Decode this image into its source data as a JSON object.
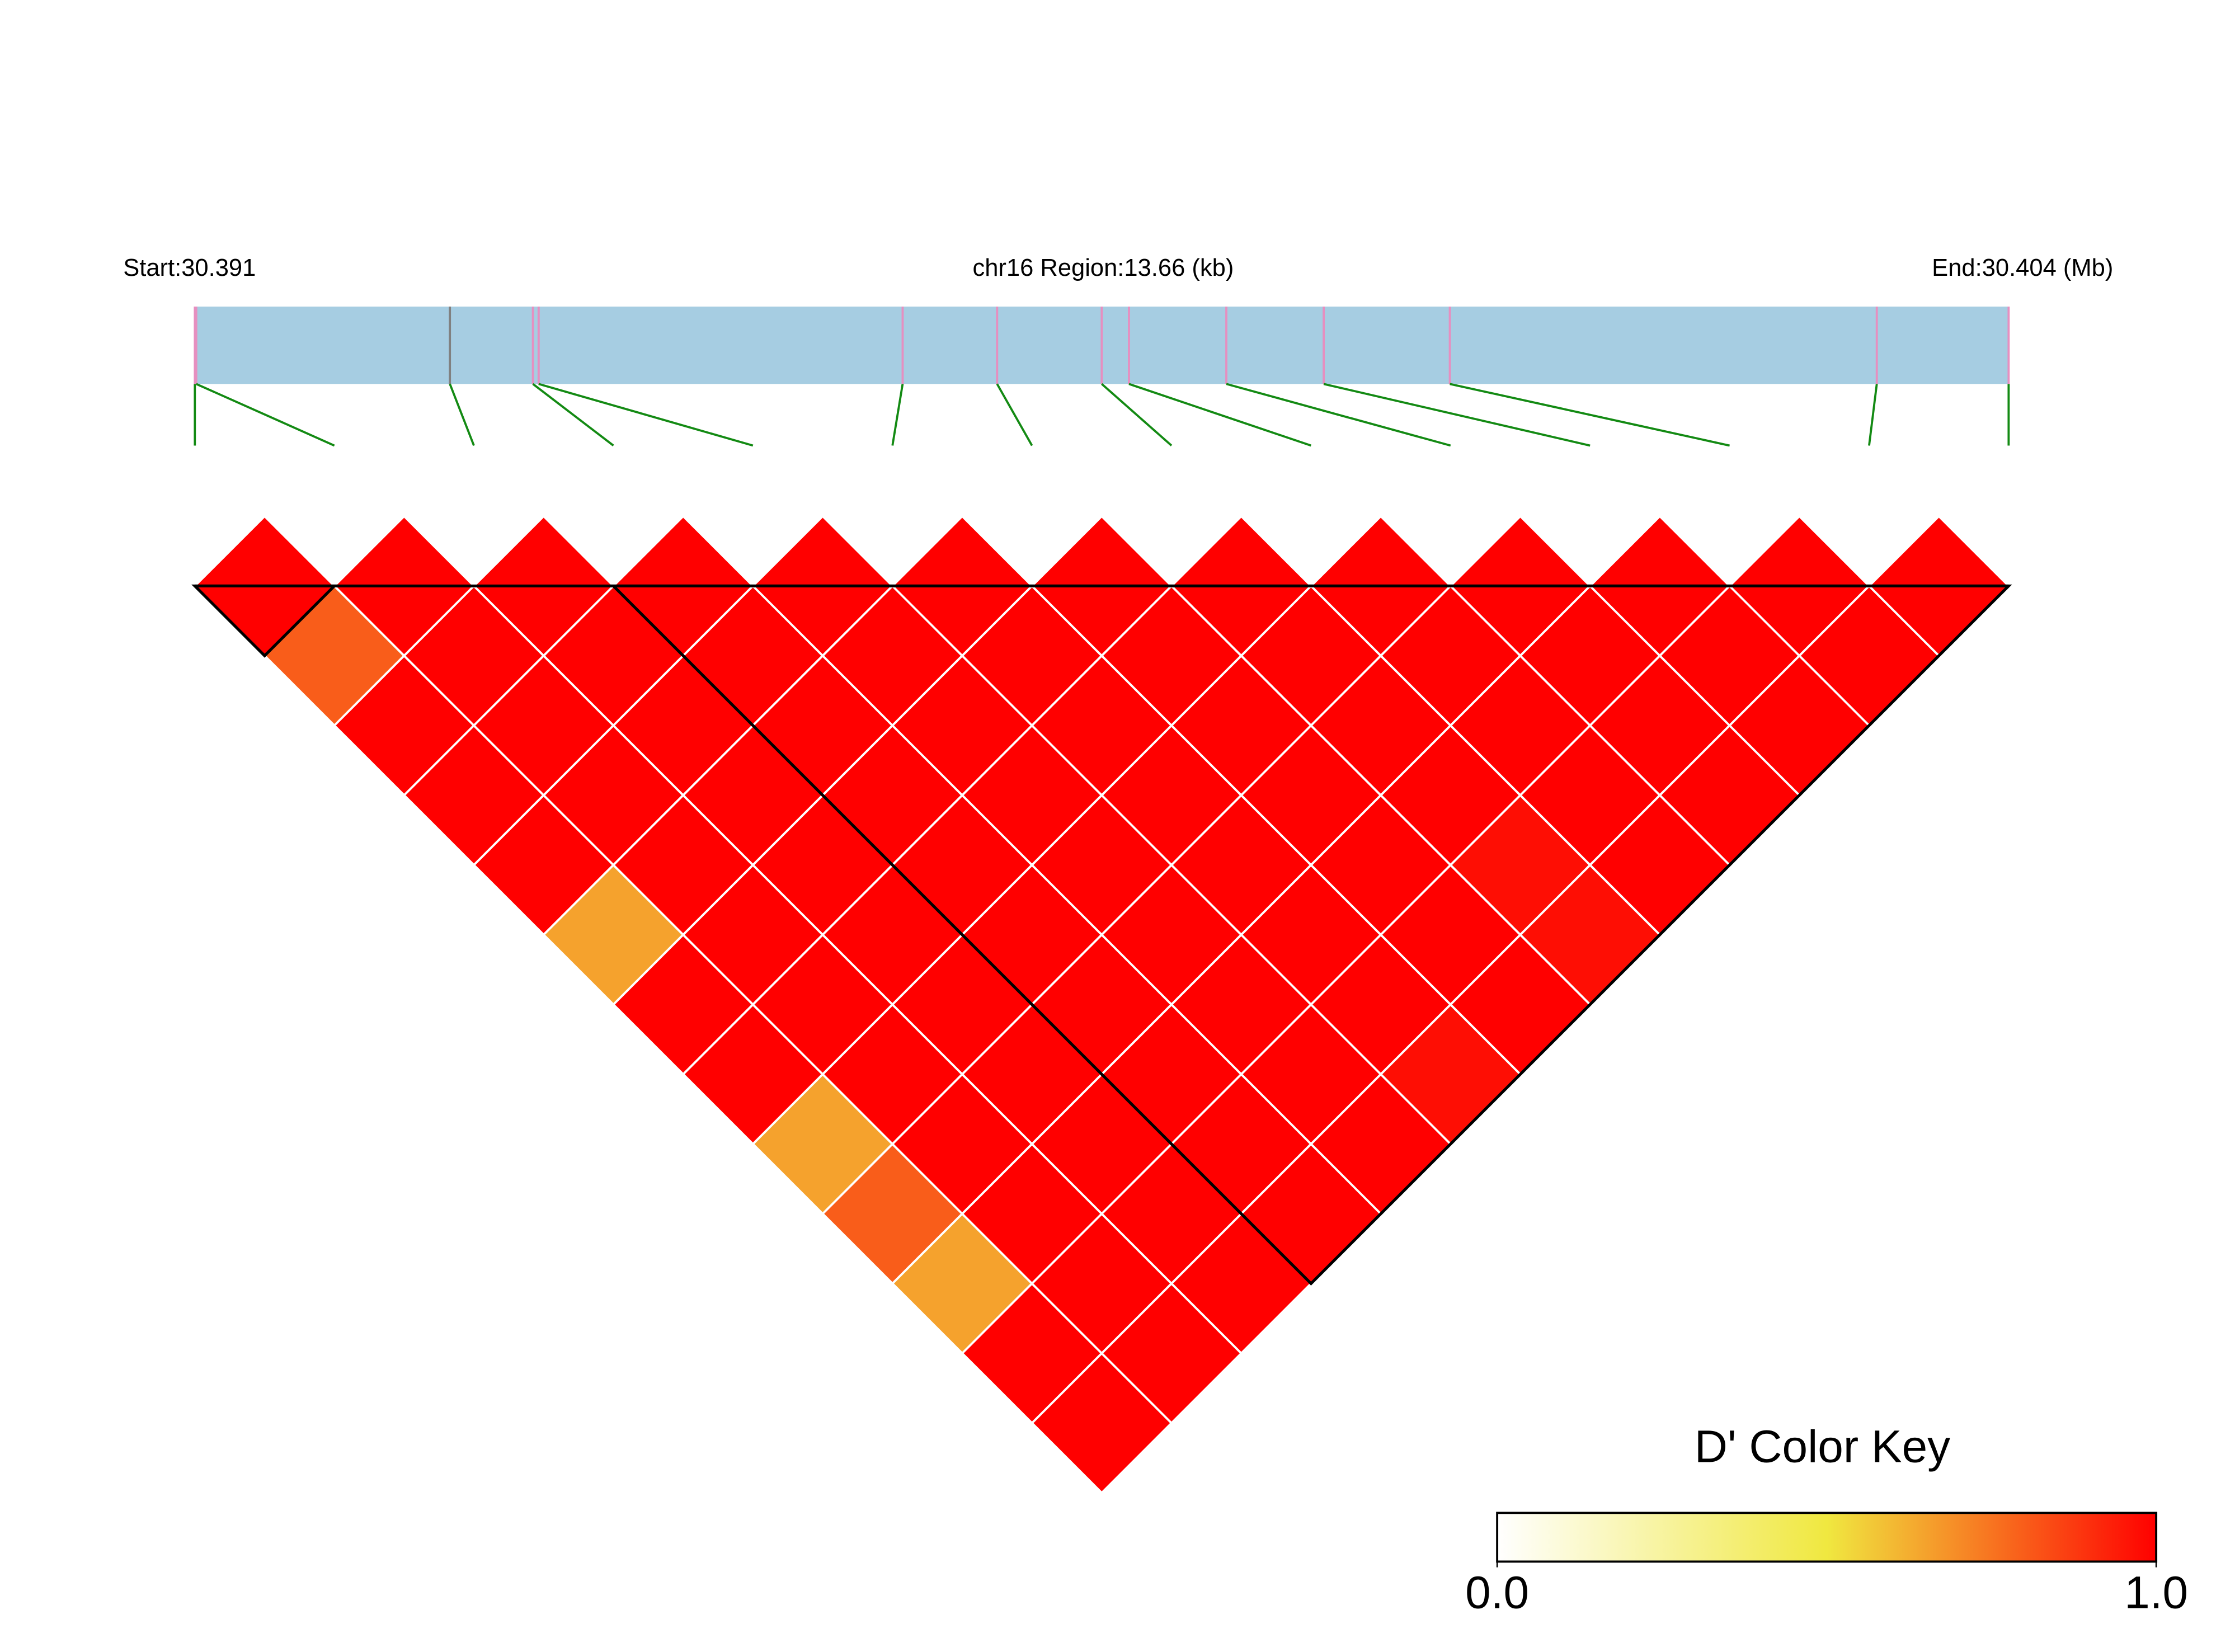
{
  "chart_data": {
    "type": "ld_heatmap",
    "start_label": "Start:30.391",
    "region_label": "chr16 Region:13.66 (kb)",
    "end_label": "End:30.404 (Mb)",
    "xlim": [
      30.391,
      30.404
    ],
    "positions": [
      30.391,
      30.39101,
      30.392828,
      30.393423,
      30.393464,
      30.396073,
      30.39675,
      30.3975,
      30.397695,
      30.398393,
      30.399091,
      30.399995,
      30.403055,
      30.404
    ],
    "snp_colors": [
      "#E68FC0",
      "#E68FC0",
      "#808080",
      "#E68FC0",
      "#E68FC0",
      "#E68FC0",
      "#E68FC0",
      "#E68FC0",
      "#E68FC0",
      "#E68FC0",
      "#E68FC0",
      "#E68FC0",
      "#E68FC0",
      "#E68FC0"
    ],
    "gene_bar_color": "#A6CDE2",
    "connector_color": "#138A13",
    "matrix": [
      [
        1,
        0.8,
        1,
        1,
        1,
        0.65,
        1,
        1,
        0.65,
        0.8,
        0.65,
        1,
        1
      ],
      [
        1,
        1,
        1,
        1,
        1,
        1,
        1,
        1,
        1,
        1,
        1,
        1
      ],
      [
        1,
        1,
        1,
        1,
        1,
        1,
        1,
        1,
        1,
        1,
        1
      ],
      [
        1,
        1,
        1,
        1,
        1,
        1,
        1,
        1,
        1,
        1
      ],
      [
        1,
        1,
        1,
        1,
        1,
        1,
        1,
        1,
        1
      ],
      [
        1,
        1,
        1,
        1,
        1,
        1,
        1,
        0.97
      ],
      [
        1,
        1,
        1,
        1,
        1,
        1,
        1
      ],
      [
        1,
        1,
        1,
        1,
        0.97,
        0.97
      ],
      [
        1,
        1,
        1,
        1,
        1
      ],
      [
        1,
        1,
        1,
        1
      ],
      [
        1,
        1,
        1
      ],
      [
        1,
        1
      ],
      [
        1
      ]
    ],
    "blocks": [
      [
        0,
        1
      ],
      [
        3,
        13
      ]
    ],
    "colorkey_title": "D' Color Key",
    "colorkey_lim": [
      0,
      1
    ],
    "colorkey_ticks": [
      {
        "value": 0,
        "label": "0.0"
      },
      {
        "value": 1,
        "label": "1.0"
      }
    ],
    "colormap": [
      {
        "value": 0,
        "color": "#FFFFFF"
      },
      {
        "value": 0.5,
        "color": "#F0E840"
      },
      {
        "value": 1,
        "color": "#FF0000"
      }
    ]
  }
}
